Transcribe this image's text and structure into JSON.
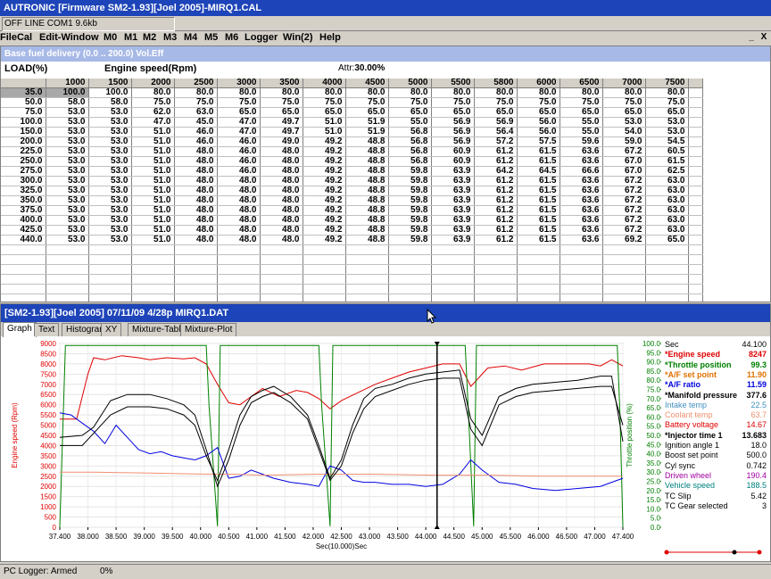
{
  "app": {
    "title": "AUTRONIC [Firmware SM2-1.93][Joel 2005]-MIRQ1.CAL",
    "status": "OFF LINE COM1 9.6kb",
    "menu": [
      "FileCal",
      "Edit-Window",
      "M0",
      "M1",
      "M2",
      "M3",
      "M4",
      "M5",
      "M6",
      "Logger",
      "Win(2)",
      "Help"
    ],
    "window_controls": [
      "_",
      "X"
    ]
  },
  "fuel_table": {
    "header": "Base fuel delivery (0.0 .. 200.0) Vol.Eff",
    "load_label": "LOAD(%)",
    "speed_label": "Engine speed(Rpm)",
    "attr_label": "Attr:",
    "attr_value": "30.00%",
    "rpm": [
      "1000",
      "1500",
      "2000",
      "2500",
      "3000",
      "3500",
      "4000",
      "4500",
      "5000",
      "5500",
      "5800",
      "6000",
      "6500",
      "7000",
      "7500"
    ],
    "rows": [
      {
        "load": "35.0",
        "values": [
          "100.0",
          "100.0",
          "80.0",
          "80.0",
          "80.0",
          "80.0",
          "80.0",
          "80.0",
          "80.0",
          "80.0",
          "80.0",
          "80.0",
          "80.0",
          "80.0",
          "80.0"
        ]
      },
      {
        "load": "50.0",
        "values": [
          "58.0",
          "58.0",
          "75.0",
          "75.0",
          "75.0",
          "75.0",
          "75.0",
          "75.0",
          "75.0",
          "75.0",
          "75.0",
          "75.0",
          "75.0",
          "75.0",
          "75.0"
        ]
      },
      {
        "load": "75.0",
        "values": [
          "53.0",
          "53.0",
          "62.0",
          "63.0",
          "65.0",
          "65.0",
          "65.0",
          "65.0",
          "65.0",
          "65.0",
          "65.0",
          "65.0",
          "65.0",
          "65.0",
          "65.0"
        ]
      },
      {
        "load": "100.0",
        "values": [
          "53.0",
          "53.0",
          "47.0",
          "45.0",
          "47.0",
          "49.7",
          "51.0",
          "51.9",
          "55.0",
          "56.9",
          "56.9",
          "56.0",
          "55.0",
          "53.0",
          "53.0"
        ]
      },
      {
        "load": "150.0",
        "values": [
          "53.0",
          "53.0",
          "51.0",
          "46.0",
          "47.0",
          "49.7",
          "51.0",
          "51.9",
          "56.8",
          "56.9",
          "56.4",
          "56.0",
          "55.0",
          "54.0",
          "53.0"
        ]
      },
      {
        "load": "200.0",
        "values": [
          "53.0",
          "53.0",
          "51.0",
          "46.0",
          "46.0",
          "49.0",
          "49.2",
          "48.8",
          "56.8",
          "56.9",
          "57.2",
          "57.5",
          "59.6",
          "59.0",
          "54.5"
        ]
      },
      {
        "load": "225.0",
        "values": [
          "53.0",
          "53.0",
          "51.0",
          "48.0",
          "46.0",
          "48.0",
          "49.2",
          "48.8",
          "56.8",
          "60.9",
          "61.2",
          "61.5",
          "63.6",
          "67.2",
          "60.5"
        ]
      },
      {
        "load": "250.0",
        "values": [
          "53.0",
          "53.0",
          "51.0",
          "48.0",
          "46.0",
          "48.0",
          "49.2",
          "48.8",
          "56.8",
          "60.9",
          "61.2",
          "61.5",
          "63.6",
          "67.0",
          "61.5"
        ]
      },
      {
        "load": "275.0",
        "values": [
          "53.0",
          "53.0",
          "51.0",
          "48.0",
          "46.0",
          "48.0",
          "49.2",
          "48.8",
          "59.8",
          "63.9",
          "64.2",
          "64.5",
          "66.6",
          "67.0",
          "62.5"
        ]
      },
      {
        "load": "300.0",
        "values": [
          "53.0",
          "53.0",
          "51.0",
          "48.0",
          "48.0",
          "48.0",
          "49.2",
          "48.8",
          "59.8",
          "63.9",
          "61.2",
          "61.5",
          "63.6",
          "67.2",
          "63.0"
        ]
      },
      {
        "load": "325.0",
        "values": [
          "53.0",
          "53.0",
          "51.0",
          "48.0",
          "48.0",
          "48.0",
          "49.2",
          "48.8",
          "59.8",
          "63.9",
          "61.2",
          "61.5",
          "63.6",
          "67.2",
          "63.0"
        ]
      },
      {
        "load": "350.0",
        "values": [
          "53.0",
          "53.0",
          "51.0",
          "48.0",
          "48.0",
          "48.0",
          "49.2",
          "48.8",
          "59.8",
          "63.9",
          "61.2",
          "61.5",
          "63.6",
          "67.2",
          "63.0"
        ]
      },
      {
        "load": "375.0",
        "values": [
          "53.0",
          "53.0",
          "51.0",
          "48.0",
          "48.0",
          "48.0",
          "49.2",
          "48.8",
          "59.8",
          "63.9",
          "61.2",
          "61.5",
          "63.6",
          "67.2",
          "63.0"
        ]
      },
      {
        "load": "400.0",
        "values": [
          "53.0",
          "53.0",
          "51.0",
          "48.0",
          "48.0",
          "48.0",
          "49.2",
          "48.8",
          "59.8",
          "63.9",
          "61.2",
          "61.5",
          "63.6",
          "67.2",
          "63.0"
        ]
      },
      {
        "load": "425.0",
        "values": [
          "53.0",
          "53.0",
          "51.0",
          "48.0",
          "48.0",
          "48.0",
          "49.2",
          "48.8",
          "59.8",
          "63.9",
          "61.2",
          "61.5",
          "63.6",
          "67.2",
          "63.0"
        ]
      },
      {
        "load": "440.0",
        "values": [
          "53.0",
          "53.0",
          "51.0",
          "48.0",
          "48.0",
          "48.0",
          "49.2",
          "48.8",
          "59.8",
          "63.9",
          "61.2",
          "61.5",
          "63.6",
          "69.2",
          "65.0"
        ]
      }
    ]
  },
  "datalog": {
    "header": "[SM2-1.93][Joel 2005] 07/11/09 4/28p MIRQ1.DAT",
    "tabs": [
      "Graph",
      "Text",
      "Histogram",
      "XY",
      "Mixture-Table",
      "Mixture-Plot"
    ],
    "legend": [
      {
        "name": "Sec",
        "value": "44.100",
        "color": "#000000",
        "bold": false
      },
      {
        "name": "*Engine speed",
        "value": "8247",
        "color": "#e00000",
        "bold": true
      },
      {
        "name": "*Throttle position",
        "value": "99.3",
        "color": "#008000",
        "bold": true
      },
      {
        "name": "*A/F set point",
        "value": "11.90",
        "color": "#e07000",
        "bold": true
      },
      {
        "name": "*A/F ratio",
        "value": "11.59",
        "color": "#0000e0",
        "bold": true
      },
      {
        "name": "*Manifold pressure",
        "value": "377.6",
        "color": "#000000",
        "bold": true
      },
      {
        "name": "Intake temp",
        "value": "22.5",
        "color": "#4090c0",
        "bold": false
      },
      {
        "name": "Coolant temp",
        "value": "63.7",
        "color": "#f09070",
        "bold": false
      },
      {
        "name": "Battery voltage",
        "value": "14.67",
        "color": "#e00000",
        "bold": false
      },
      {
        "name": "*Injector time 1",
        "value": "13.683",
        "color": "#000000",
        "bold": true
      },
      {
        "name": "Ignition angle 1",
        "value": "18.0",
        "color": "#000000",
        "bold": false
      },
      {
        "name": "Boost set point",
        "value": "500.0",
        "color": "#000000",
        "bold": false
      },
      {
        "name": "Cyl sync",
        "value": "0.742",
        "color": "#000000",
        "bold": false
      },
      {
        "name": "Driven wheel",
        "value": "190.4",
        "color": "#a000a0",
        "bold": false
      },
      {
        "name": "Vehicle speed",
        "value": "188.5",
        "color": "#008080",
        "bold": false
      },
      {
        "name": "TC Slip",
        "value": "5.42",
        "color": "#000000",
        "bold": false
      },
      {
        "name": "TC Gear selected",
        "value": "3",
        "color": "#000000",
        "bold": false
      }
    ]
  },
  "chart_data": {
    "type": "line",
    "ylabel": "Engine speed (Rpm)",
    "y2label": "Throttle position (%)",
    "xlabel": "Sec(10.000)Sec",
    "xticks": [
      "37.400",
      "38.000",
      "38.500",
      "39.000",
      "39.500",
      "40.000",
      "40.500",
      "41.000",
      "41.500",
      "42.000",
      "42.500",
      "43.000",
      "43.500",
      "44.000",
      "44.500",
      "45.000",
      "45.500",
      "46.000",
      "46.500",
      "47.000",
      "47.400"
    ],
    "yticks": [
      "9000",
      "8500",
      "8000",
      "7500",
      "7000",
      "6500",
      "6000",
      "5500",
      "5000",
      "4500",
      "4000",
      "3500",
      "3000",
      "2500",
      "2000",
      "1500",
      "1000",
      "500",
      "0"
    ],
    "y2ticks": [
      "100.0",
      "95.0",
      "90.0",
      "85.0",
      "80.0",
      "75.0",
      "70.0",
      "65.0",
      "60.0",
      "55.0",
      "50.0",
      "45.0",
      "40.0",
      "35.0",
      "30.0",
      "25.0",
      "20.0",
      "15.0",
      "10.0",
      "5.0",
      "0.0"
    ],
    "xlim": [
      37.4,
      47.4
    ],
    "ylim": [
      0,
      9000
    ],
    "y2lim": [
      0,
      100
    ],
    "cursor_x": 44.1,
    "series": [
      {
        "color": "#e00000",
        "x": [
          37.4,
          37.7,
          37.9,
          38.0,
          38.2,
          38.5,
          38.8,
          39.0,
          39.3,
          39.6,
          39.8,
          40.0,
          40.2,
          40.4,
          40.6,
          40.8,
          41.0,
          41.3,
          41.6,
          41.8,
          42.0,
          42.2,
          42.4,
          42.7,
          43.0,
          43.3,
          43.6,
          43.9,
          44.2,
          44.5,
          44.7,
          45.0,
          45.3,
          45.6,
          46.0,
          46.4,
          46.8,
          47.0,
          47.2,
          47.4
        ],
        "y": [
          5300,
          5300,
          7500,
          8300,
          8200,
          8400,
          8300,
          8200,
          8300,
          8250,
          8300,
          8000,
          7000,
          6100,
          6000,
          6400,
          6800,
          6400,
          6700,
          6600,
          6300,
          5800,
          6200,
          6600,
          7000,
          7300,
          7600,
          7800,
          8000,
          8000,
          6900,
          7800,
          7900,
          7700,
          8000,
          8000,
          8000,
          7900,
          8200,
          7900
        ]
      },
      {
        "color": "#008000",
        "step": true,
        "x": [
          37.4,
          37.5,
          40.0,
          40.05,
          40.2,
          40.25,
          42.0,
          42.05,
          42.2,
          42.25,
          44.6,
          44.65,
          44.75,
          44.8,
          47.3,
          47.35,
          47.4
        ],
        "y": [
          0,
          8900,
          8900,
          6000,
          50,
          8900,
          8900,
          6000,
          50,
          8900,
          8900,
          6000,
          50,
          8900,
          8900,
          5500,
          0
        ]
      },
      {
        "color": "#0000e0",
        "x": [
          37.4,
          37.6,
          37.8,
          38.0,
          38.2,
          38.4,
          38.6,
          38.8,
          39.0,
          39.2,
          39.4,
          39.6,
          39.8,
          40.0,
          40.2,
          40.4,
          40.6,
          40.8,
          41.0,
          41.2,
          41.5,
          41.8,
          42.0,
          42.2,
          42.4,
          42.6,
          42.8,
          43.0,
          43.3,
          43.6,
          43.9,
          44.2,
          44.5,
          44.7,
          44.9,
          45.2,
          45.5,
          45.8,
          46.2,
          46.6,
          47.0,
          47.2,
          47.4
        ],
        "y": [
          5600,
          5500,
          5100,
          4700,
          4100,
          5000,
          4400,
          3800,
          3600,
          3700,
          3500,
          3400,
          3300,
          3500,
          3900,
          2400,
          2500,
          2800,
          2600,
          2400,
          2200,
          2100,
          2000,
          3000,
          2800,
          2300,
          2200,
          2200,
          2100,
          2100,
          2000,
          2100,
          2600,
          3300,
          2800,
          2200,
          2100,
          1900,
          1800,
          1900,
          2000,
          2200,
          2400
        ]
      },
      {
        "color": "#f09070",
        "x": [
          37.4,
          38.0,
          39.0,
          40.0,
          40.5,
          41.0,
          42.0,
          43.0,
          44.0,
          45.0,
          46.0,
          47.0,
          47.4
        ],
        "y": [
          2700,
          2700,
          2650,
          2600,
          2600,
          2550,
          2600,
          2600,
          2550,
          2550,
          2500,
          2500,
          2500
        ]
      },
      {
        "color": "#000000",
        "x": [
          37.4,
          37.8,
          38.0,
          38.3,
          38.6,
          39.0,
          39.3,
          39.6,
          39.8,
          40.0,
          40.2,
          40.4,
          40.6,
          40.8,
          41.0,
          41.2,
          41.5,
          41.8,
          42.0,
          42.2,
          42.4,
          42.6,
          42.8,
          43.0,
          43.3,
          43.6,
          43.9,
          44.2,
          44.5,
          44.7,
          44.9,
          45.2,
          45.5,
          45.8,
          46.2,
          46.6,
          47.0,
          47.2,
          47.4
        ],
        "y": [
          4000,
          4000,
          4600,
          5500,
          5900,
          5900,
          5800,
          5500,
          5000,
          3500,
          2300,
          3800,
          5500,
          6400,
          6700,
          6900,
          6400,
          5500,
          4000,
          2400,
          3300,
          5000,
          6300,
          6800,
          7000,
          7300,
          7500,
          7600,
          7700,
          5300,
          4500,
          6400,
          6800,
          7000,
          7100,
          7200,
          7400,
          7400,
          4200
        ]
      },
      {
        "color": "#000000",
        "x": [
          37.4,
          37.8,
          38.0,
          38.3,
          38.6,
          39.0,
          39.3,
          39.6,
          39.8,
          40.0,
          40.2,
          40.4,
          40.6,
          40.8,
          41.0,
          41.2,
          41.5,
          41.8,
          42.0,
          42.2,
          42.4,
          42.6,
          42.8,
          43.0,
          43.3,
          43.6,
          43.9,
          44.2,
          44.5,
          44.7,
          44.9,
          45.2,
          45.5,
          45.8,
          46.2,
          46.6,
          47.0,
          47.2,
          47.4
        ],
        "y": [
          4400,
          4500,
          4900,
          6200,
          6500,
          6500,
          6300,
          6000,
          5500,
          3800,
          2000,
          3300,
          5000,
          6100,
          6400,
          6600,
          6100,
          5300,
          3800,
          2300,
          3000,
          4600,
          5800,
          6400,
          6700,
          7000,
          7200,
          7300,
          7300,
          4800,
          4000,
          6000,
          6400,
          6600,
          6700,
          6800,
          6900,
          6900,
          5000
        ]
      }
    ]
  },
  "bottom": {
    "left": "PC Logger: Armed",
    "pct": "0%"
  }
}
